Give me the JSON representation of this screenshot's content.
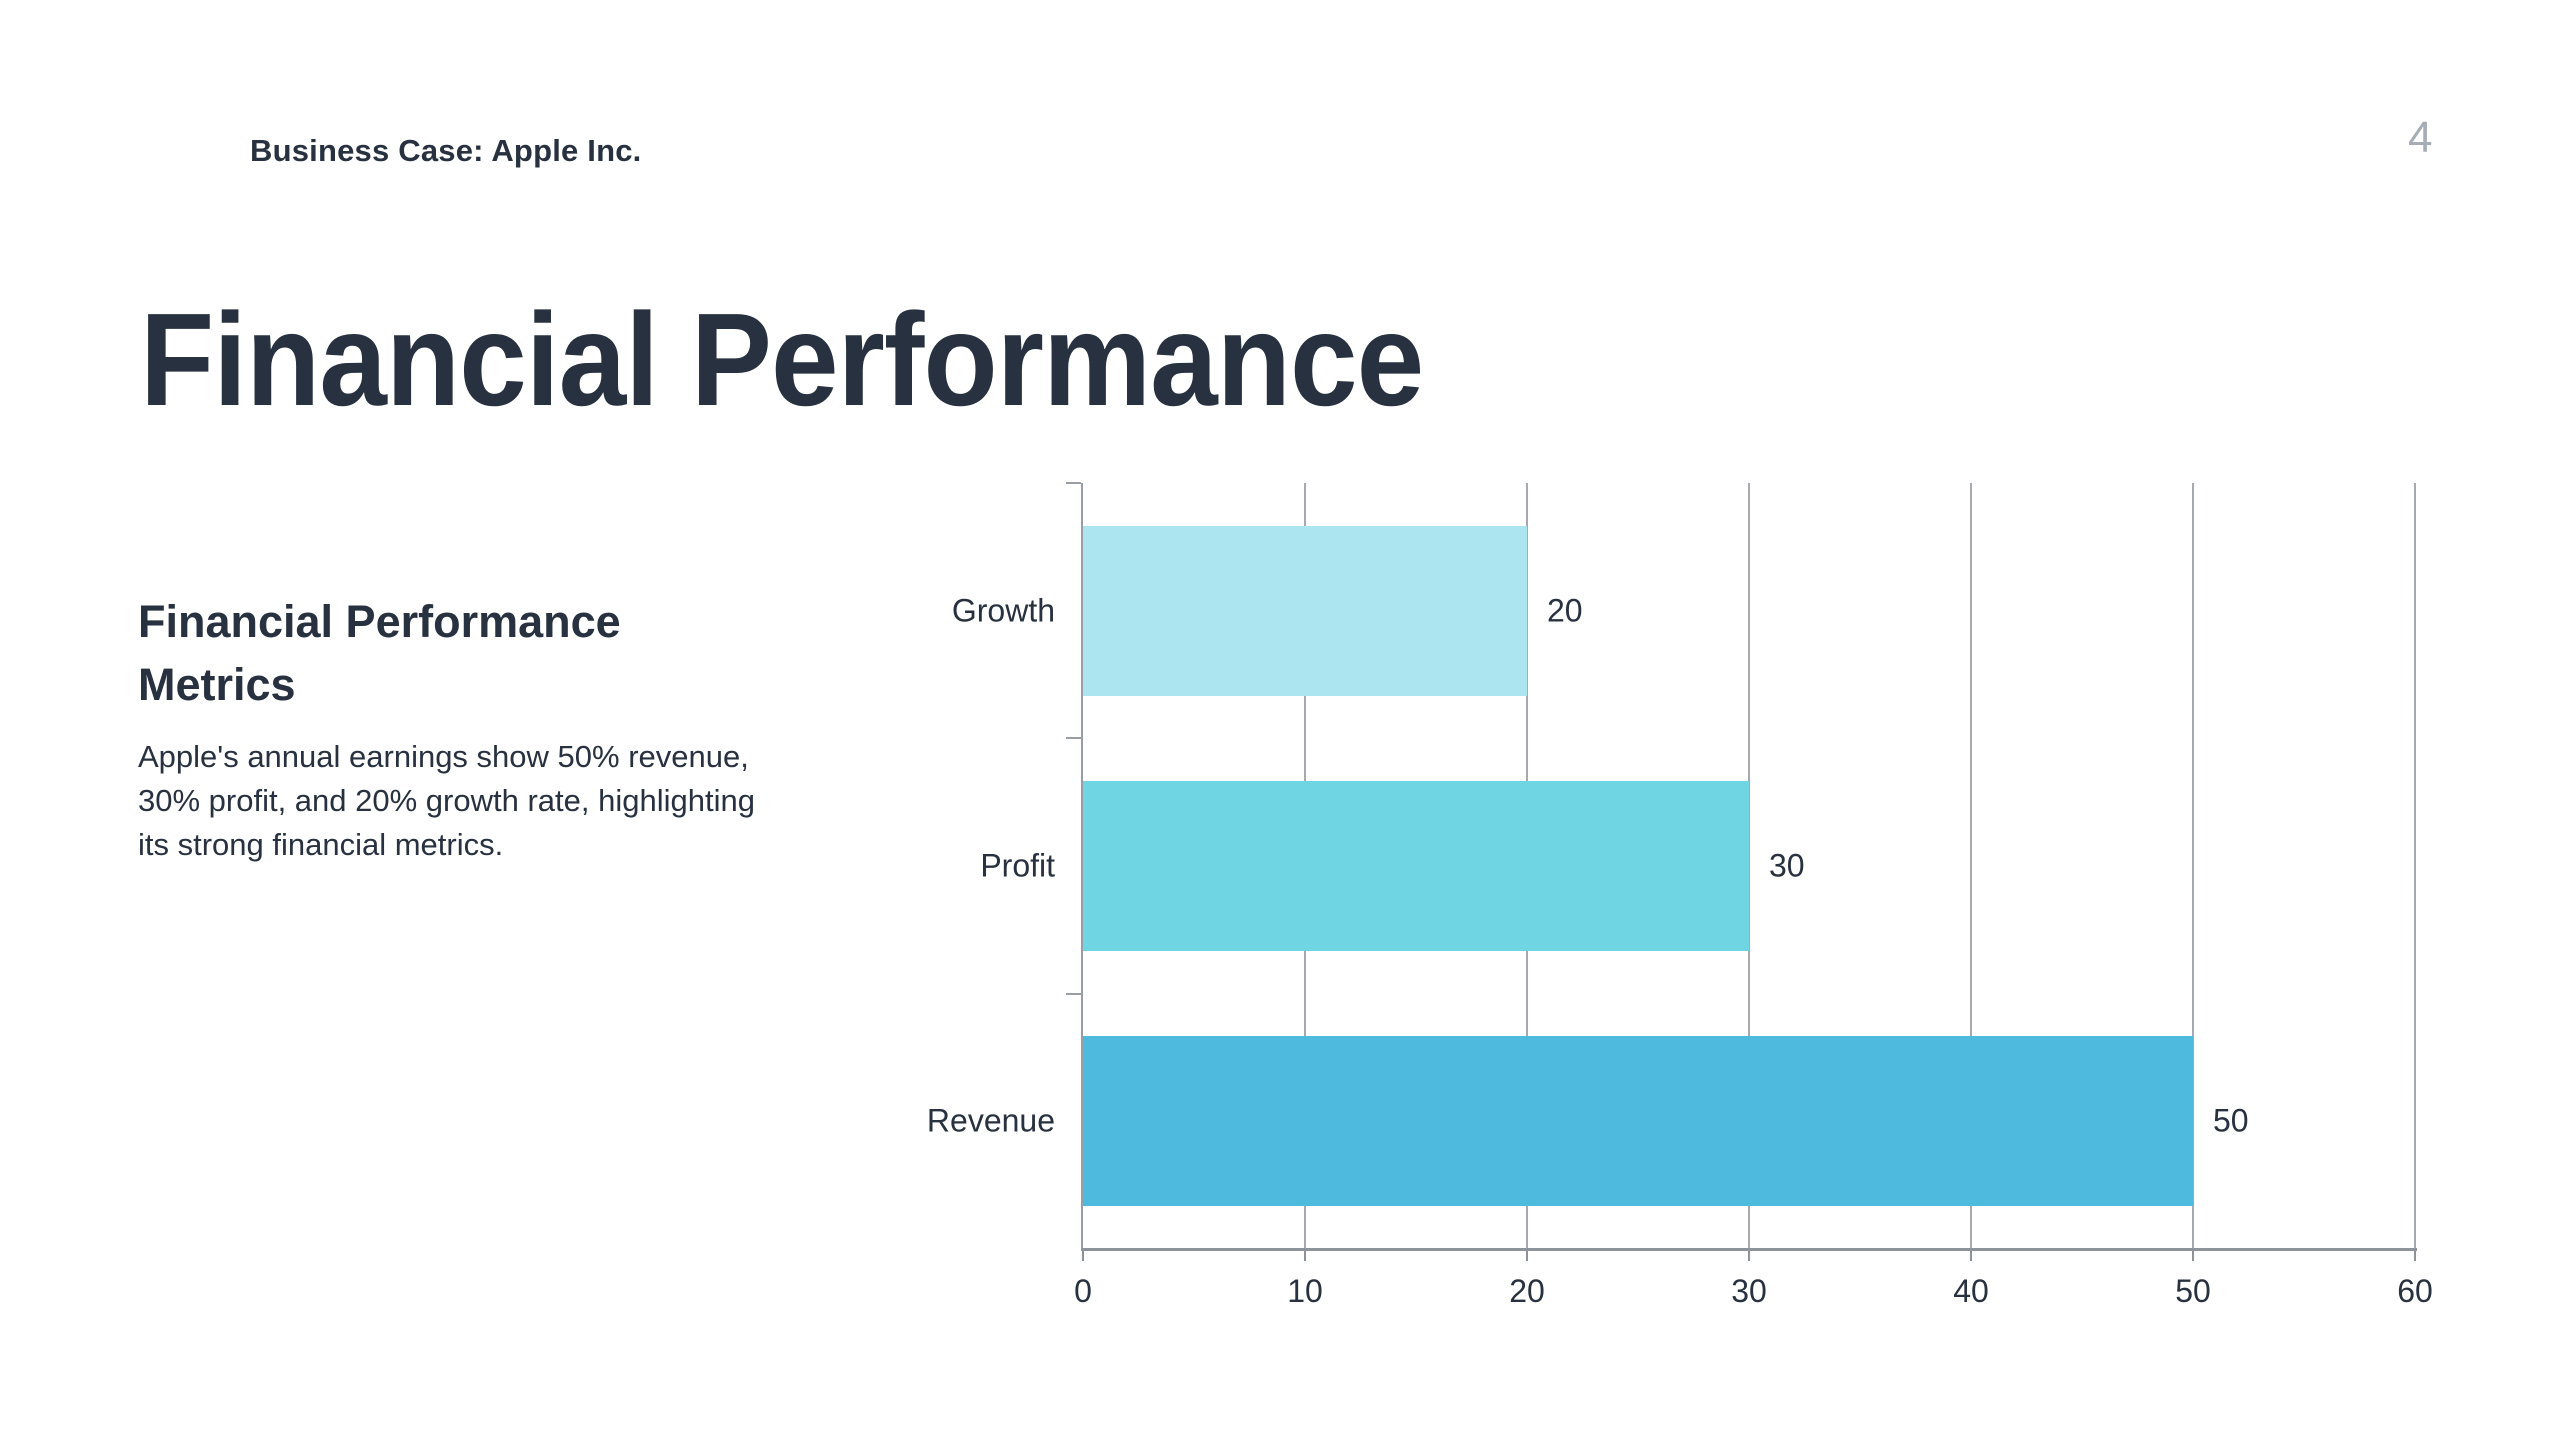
{
  "slide": {
    "kicker": "Business Case: Apple Inc.",
    "page_number": "4",
    "title": "Financial Performance",
    "section_heading": "Financial Performance Metrics",
    "body": "Apple's annual earnings show 50% revenue, 30% profit, and 20% growth rate, highlighting its strong financial metrics."
  },
  "colors": {
    "text_navy": "#27313f",
    "page_number_gray": "#a7adb6",
    "gridline_gray": "#a6aab0",
    "axis_gray": "#8d939b",
    "background": "#ffffff"
  },
  "chart_data": {
    "type": "bar",
    "orientation": "horizontal",
    "title": "",
    "xlabel": "",
    "ylabel": "",
    "categories": [
      "Growth",
      "Profit",
      "Revenue"
    ],
    "values": [
      20,
      30,
      50
    ],
    "bar_colors": [
      "#ace4ef",
      "#70d5e2",
      "#4dbade"
    ],
    "xlim": [
      0,
      60
    ],
    "xticks": [
      0,
      10,
      20,
      30,
      40,
      50,
      60
    ],
    "grid": true,
    "legend": false,
    "value_labels_shown": true
  }
}
